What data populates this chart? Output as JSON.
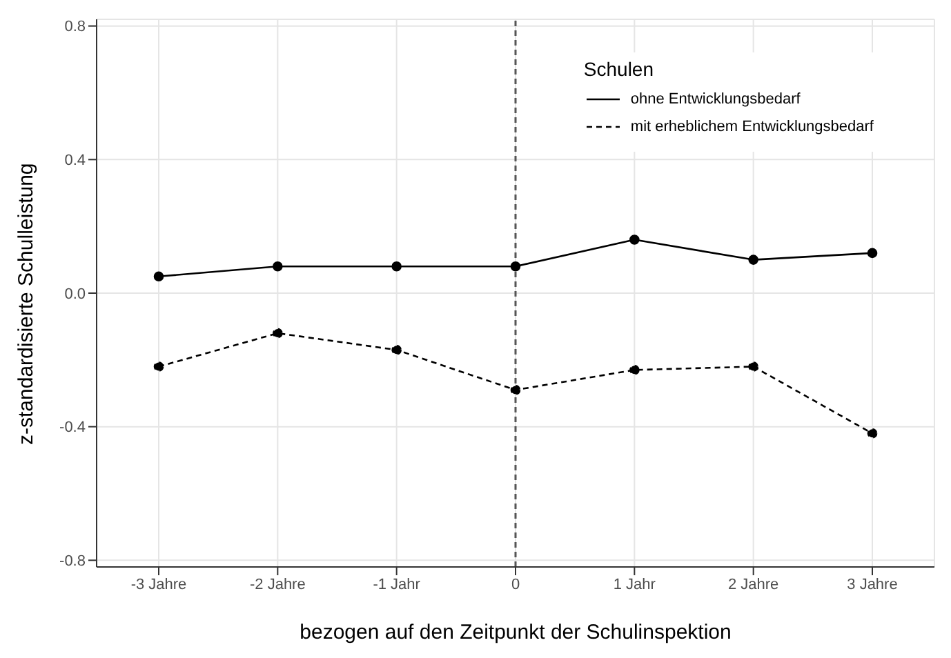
{
  "chart_data": {
    "type": "line",
    "xlabel": "bezogen auf den Zeitpunkt der Schulinspektion",
    "ylabel": "z-standardisierte Schulleistung",
    "legend_title": "Schulen",
    "categories": [
      "-3 Jahre",
      "-2 Jahre",
      "-1 Jahr",
      "0",
      "1 Jahr",
      "2 Jahre",
      "3 Jahre"
    ],
    "series": [
      {
        "name": "ohne Entwicklungsbedarf",
        "color": "#000000",
        "line_style": "solid",
        "values": [
          0.05,
          0.08,
          0.08,
          0.08,
          0.16,
          0.1,
          0.12
        ]
      },
      {
        "name": "mit erheblichem Entwicklungsbedarf",
        "color": "#000000",
        "line_style": "dashed",
        "values": [
          -0.22,
          -0.12,
          -0.17,
          -0.29,
          -0.23,
          -0.22,
          -0.42
        ]
      }
    ],
    "ylim": [
      -0.82,
      0.82
    ],
    "yticks": [
      {
        "value": -0.8,
        "label": "-0.8"
      },
      {
        "value": -0.4,
        "label": "-0.4"
      },
      {
        "value": 0,
        "label": "0.0"
      },
      {
        "value": 0.4,
        "label": "0.4"
      },
      {
        "value": 0.8,
        "label": "0.8"
      }
    ],
    "ref_lines": [
      {
        "axis": "x",
        "value": "0",
        "color": "#555555",
        "line_style": "dashed"
      }
    ],
    "grid": true,
    "legend": "top right",
    "marker": "circle"
  }
}
